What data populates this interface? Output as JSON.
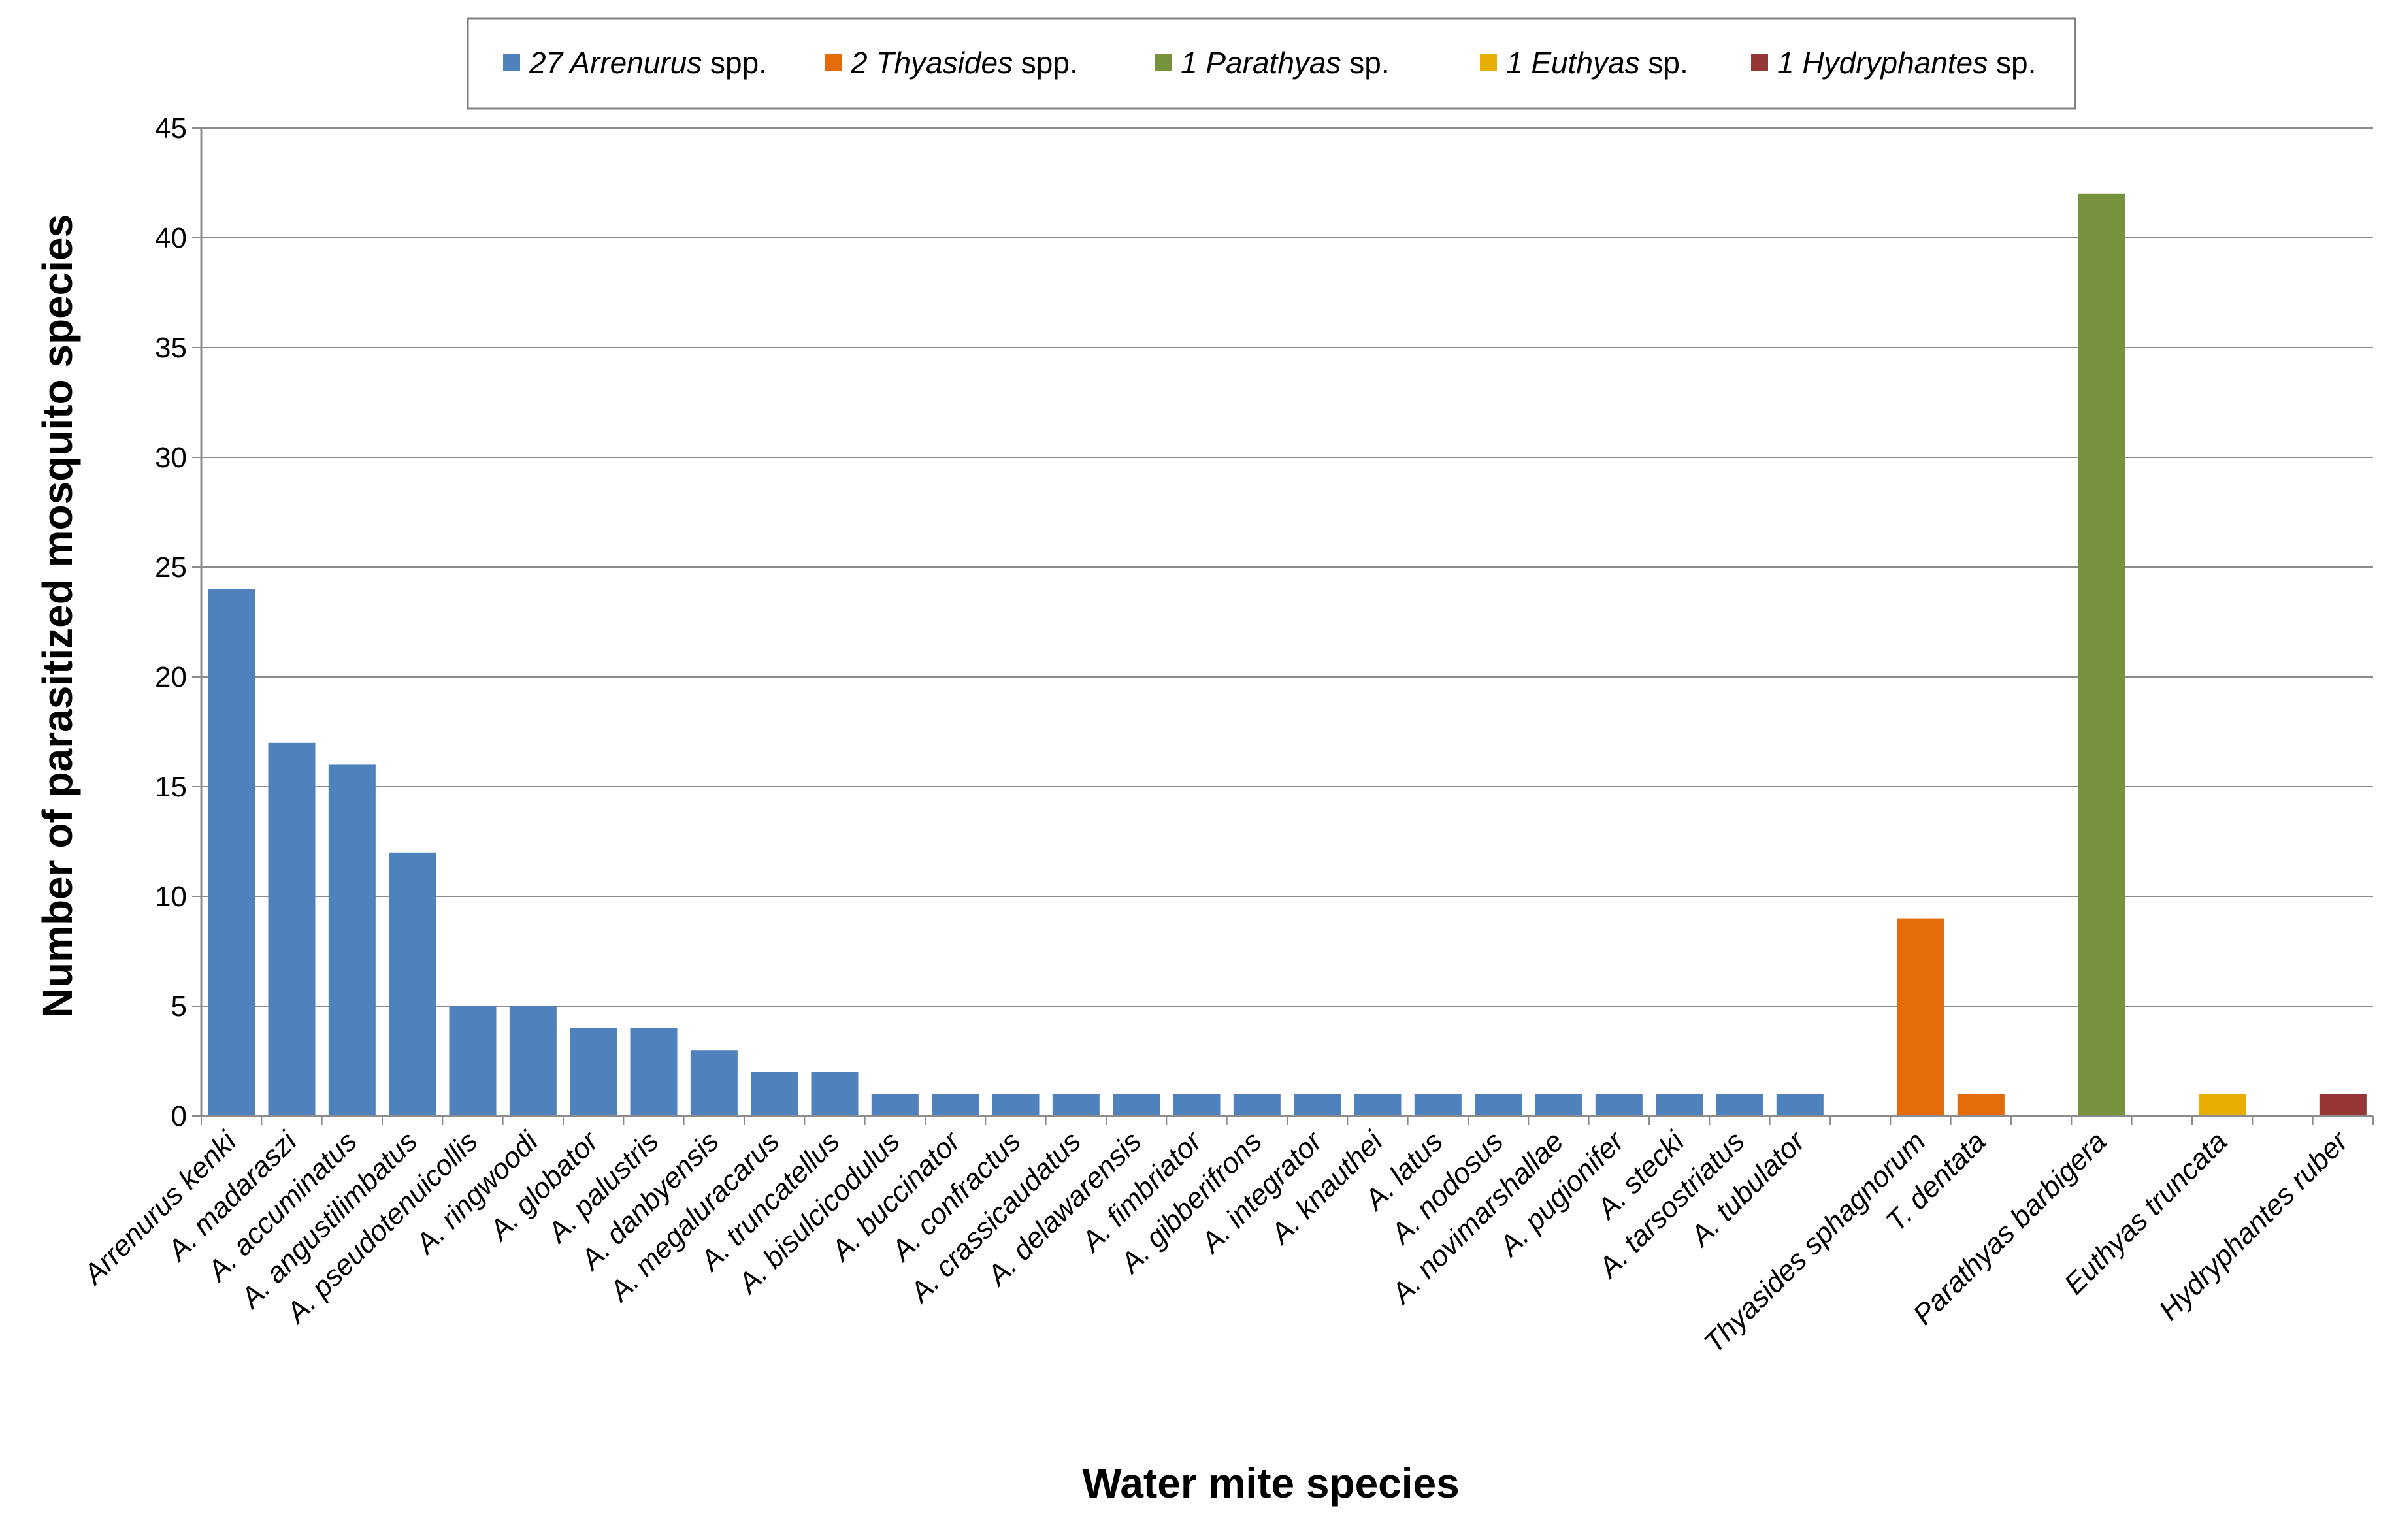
{
  "chart_data": {
    "type": "bar",
    "title": "",
    "xlabel": "Water mite species",
    "ylabel": "Number of parasitized mosquito species",
    "ylim": [
      0,
      45
    ],
    "yticks": [
      0,
      5,
      10,
      15,
      20,
      25,
      30,
      35,
      40,
      45
    ],
    "grid": true,
    "legend_position": "top-center",
    "colors": {
      "arrenurus": "#4f81bd",
      "thyasides": "#e36c09",
      "parathyas": "#76923c",
      "euthyas": "#e5ae00",
      "hydryphantes": "#953735"
    },
    "legend": [
      {
        "group": "arrenurus",
        "prefix": "27 ",
        "genus": "Arrenurus",
        "suffix": " spp."
      },
      {
        "group": "thyasides",
        "prefix": "2 ",
        "genus": "Thyasides",
        "suffix": " spp."
      },
      {
        "group": "parathyas",
        "prefix": "1 ",
        "genus": "Parathyas",
        "suffix": " sp."
      },
      {
        "group": "euthyas",
        "prefix": "1 ",
        "genus": "Euthyas",
        "suffix": " sp."
      },
      {
        "group": "hydryphantes",
        "prefix": "1 ",
        "genus": "Hydryphantes",
        "suffix": " sp."
      }
    ],
    "categories": [
      {
        "name": "Arrenurus kenki",
        "value": 24,
        "group": "arrenurus"
      },
      {
        "name": "A. madaraszi",
        "value": 17,
        "group": "arrenurus"
      },
      {
        "name": "A. accuminatus",
        "value": 16,
        "group": "arrenurus"
      },
      {
        "name": "A. angustilimbatus",
        "value": 12,
        "group": "arrenurus"
      },
      {
        "name": "A. pseudotenuicollis",
        "value": 5,
        "group": "arrenurus"
      },
      {
        "name": "A. ringwoodi",
        "value": 5,
        "group": "arrenurus"
      },
      {
        "name": "A. globator",
        "value": 4,
        "group": "arrenurus"
      },
      {
        "name": "A. palustris",
        "value": 4,
        "group": "arrenurus"
      },
      {
        "name": "A. danbyensis",
        "value": 3,
        "group": "arrenurus"
      },
      {
        "name": "A. megaluracarus",
        "value": 2,
        "group": "arrenurus"
      },
      {
        "name": "A. truncatellus",
        "value": 2,
        "group": "arrenurus"
      },
      {
        "name": "A. bisulcicodulus",
        "value": 1,
        "group": "arrenurus"
      },
      {
        "name": "A. buccinator",
        "value": 1,
        "group": "arrenurus"
      },
      {
        "name": "A. confractus",
        "value": 1,
        "group": "arrenurus"
      },
      {
        "name": "A. crassicaudatus",
        "value": 1,
        "group": "arrenurus"
      },
      {
        "name": "A. delawarensis",
        "value": 1,
        "group": "arrenurus"
      },
      {
        "name": "A. fimbriator",
        "value": 1,
        "group": "arrenurus"
      },
      {
        "name": "A. gibberifrons",
        "value": 1,
        "group": "arrenurus"
      },
      {
        "name": "A. integrator",
        "value": 1,
        "group": "arrenurus"
      },
      {
        "name": "A. knauthei",
        "value": 1,
        "group": "arrenurus"
      },
      {
        "name": "A. latus",
        "value": 1,
        "group": "arrenurus"
      },
      {
        "name": "A. nodosus",
        "value": 1,
        "group": "arrenurus"
      },
      {
        "name": "A. novimarshallae",
        "value": 1,
        "group": "arrenurus"
      },
      {
        "name": "A. pugionifer",
        "value": 1,
        "group": "arrenurus"
      },
      {
        "name": "A. stecki",
        "value": 1,
        "group": "arrenurus"
      },
      {
        "name": "A. tarsostriatus",
        "value": 1,
        "group": "arrenurus"
      },
      {
        "name": "A. tubulator",
        "value": 1,
        "group": "arrenurus"
      },
      {
        "name": "",
        "value": null,
        "group": "gap"
      },
      {
        "name": "Thyasides sphagnorum",
        "value": 9,
        "group": "thyasides"
      },
      {
        "name": "T. dentata",
        "value": 1,
        "group": "thyasides"
      },
      {
        "name": "",
        "value": null,
        "group": "gap"
      },
      {
        "name": "Parathyas barbigera",
        "value": 42,
        "group": "parathyas"
      },
      {
        "name": "",
        "value": null,
        "group": "gap"
      },
      {
        "name": "Euthyas truncata",
        "value": 1,
        "group": "euthyas"
      },
      {
        "name": "",
        "value": null,
        "group": "gap"
      },
      {
        "name": "Hydryphantes ruber",
        "value": 1,
        "group": "hydryphantes"
      }
    ]
  }
}
